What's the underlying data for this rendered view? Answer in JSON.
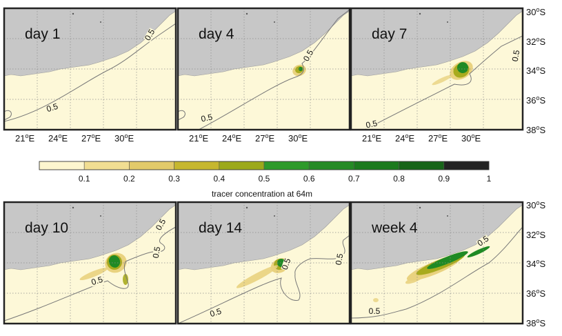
{
  "panels": [
    {
      "title": "day 1"
    },
    {
      "title": "day 4"
    },
    {
      "title": "day 7"
    },
    {
      "title": "day 10"
    },
    {
      "title": "day 14"
    },
    {
      "title": "week 4"
    }
  ],
  "contour_label": "0.5",
  "longitude_ticks": [
    "21",
    "24",
    "27",
    "30"
  ],
  "latitude_ticks": [
    "30",
    "32",
    "34",
    "36",
    "38"
  ],
  "longitude_suffix": "E",
  "latitude_suffix": "S",
  "colorbar": {
    "title": "tracer concentration at 64m",
    "ticks": [
      "0.1",
      "0.2",
      "0.3",
      "0.4",
      "0.5",
      "0.6",
      "0.7",
      "0.8",
      "0.9",
      "1"
    ],
    "colors": [
      "#fdf6cf",
      "#f1de92",
      "#e2ca6a",
      "#c6b72f",
      "#9ca91a",
      "#2e9a2b",
      "#258a25",
      "#1c7a1e",
      "#176418",
      "#222222"
    ]
  },
  "colors": {
    "ocean": "#fdf8d8",
    "land": "#c7c7c7",
    "grid": "#8a8a8a",
    "contour": "#777777",
    "tracer_light": "#e9d27f",
    "tracer_mid": "#a8ab1e",
    "tracer_dark": "#1f8a24"
  }
}
